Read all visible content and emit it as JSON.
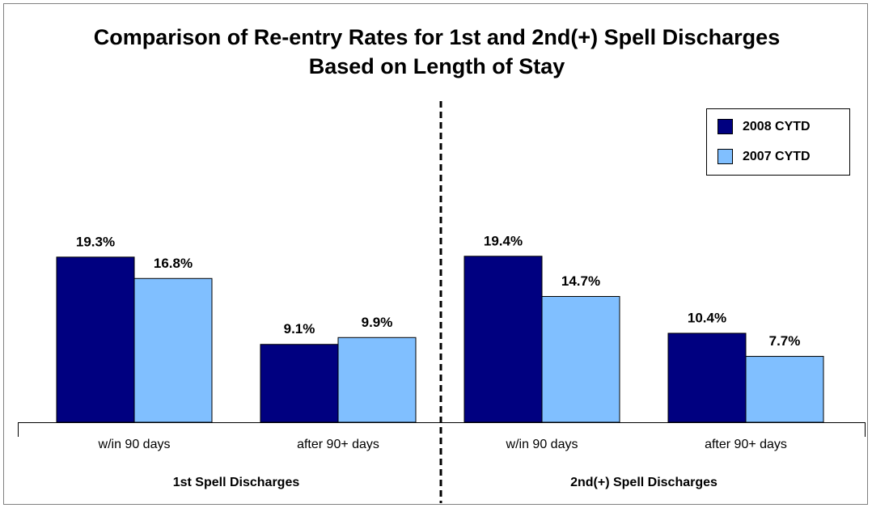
{
  "chart_data": {
    "type": "bar",
    "title": [
      "Comparison of Re-entry Rates for 1st and 2nd(+) Spell Discharges",
      "Based on Length of Stay"
    ],
    "categories": [
      "w/in 90 days",
      "after 90+ days",
      "w/in 90 days",
      "after 90+ days"
    ],
    "groups": [
      "1st Spell Discharges",
      "2nd(+) Spell Discharges"
    ],
    "series": [
      {
        "name": "2008 CYTD",
        "color": "#000080",
        "values": [
          19.3,
          9.1,
          19.4,
          10.4
        ],
        "value_labels": [
          "19.3%",
          "9.1%",
          "19.4%",
          "10.4%"
        ]
      },
      {
        "name": "2007 CYTD",
        "color": "#80BFFF",
        "values": [
          16.8,
          9.9,
          14.7,
          7.7
        ],
        "value_labels": [
          "16.8%",
          "9.9%",
          "14.7%",
          "7.7%"
        ]
      }
    ],
    "ylim": [
      0,
      38
    ],
    "legend": "upper right"
  }
}
